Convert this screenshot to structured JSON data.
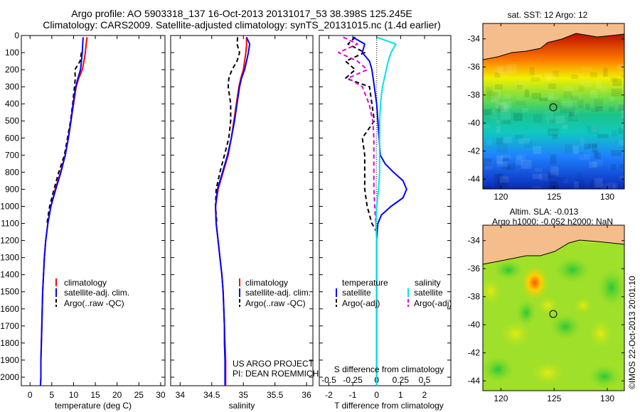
{
  "header": {
    "title_line1": "Argo profile: AO 5903318_137 16-Oct-2013 20131017_53 38.398S 125.245E",
    "title_line2": "Climatology: CARS2009. Satellite-adjusted climatology: synTS_20131015.nc (1.4d earlier)"
  },
  "colors": {
    "climatology": "#ff0000",
    "satellite": "#0000ff",
    "argo": "#000000",
    "salinity_satellite": "#00e5e5",
    "salinity_argo": "#e000e0",
    "land": "#f6bd8c"
  },
  "chart_data": [
    {
      "type": "line",
      "panel": "temperature",
      "xlabel": "temperature (deg C)",
      "xlim": [
        -2,
        31
      ],
      "xticks": [
        "0",
        "5",
        "10",
        "15",
        "20",
        "25",
        "30"
      ],
      "ylim": [
        0,
        2050
      ],
      "yticks": [
        "0",
        "100",
        "200",
        "300",
        "400",
        "500",
        "600",
        "700",
        "800",
        "900",
        "1000",
        "1100",
        "1200",
        "1300",
        "1400",
        "1500",
        "1600",
        "1700",
        "1800",
        "1900",
        "2000"
      ],
      "legend": [
        "climatology",
        "satellite-adj. clim.",
        "Argo(..raw -QC)"
      ],
      "series": [
        {
          "name": "climatology",
          "style": "solid",
          "y": [
            10,
            50,
            100,
            150,
            200,
            250,
            300,
            400,
            500,
            600,
            700,
            800,
            900,
            1000,
            1100,
            1200,
            1300,
            1400,
            1500,
            1600,
            1700,
            1800,
            1900,
            2000,
            2050
          ],
          "values": [
            13.1,
            12.9,
            12.7,
            12.4,
            12.0,
            11.2,
            10.6,
            10.0,
            9.4,
            8.8,
            8.1,
            7.0,
            5.8,
            4.8,
            4.1,
            3.6,
            3.3,
            3.1,
            2.9,
            2.8,
            2.7,
            2.6,
            2.5,
            2.5,
            2.4
          ]
        },
        {
          "name": "satellite-adj. clim.",
          "style": "solid",
          "y": [
            10,
            50,
            100,
            150,
            200,
            250,
            300,
            400,
            500,
            600,
            700,
            800,
            900,
            1000,
            1100,
            1200,
            1300,
            1400,
            1500,
            1600,
            1700,
            1800,
            1900,
            2000,
            2050
          ],
          "values": [
            12.2,
            12.1,
            12.0,
            11.8,
            11.6,
            11.0,
            10.5,
            9.9,
            9.4,
            8.8,
            8.1,
            7.1,
            5.9,
            4.8,
            4.1,
            3.6,
            3.3,
            3.1,
            2.9,
            2.8,
            2.7,
            2.6,
            2.5,
            2.5,
            2.4
          ]
        },
        {
          "name": "Argo(..raw -QC)",
          "style": "dashed",
          "y": [
            100,
            150,
            200,
            250,
            300,
            400,
            500,
            600,
            700,
            800,
            900,
            1000,
            1100
          ],
          "values": [
            11.8,
            11.5,
            10.3,
            10.4,
            10.2,
            9.8,
            9.3,
            8.6,
            7.9,
            6.6,
            5.5,
            4.5,
            3.9
          ]
        }
      ]
    },
    {
      "type": "line",
      "panel": "salinity",
      "xlabel": "salinity",
      "xlim": [
        33.85,
        36.1
      ],
      "xticks": [
        "34",
        "34.5",
        "35",
        "35.5",
        "36"
      ],
      "ylim": [
        0,
        2050
      ],
      "legend": [
        "climatology",
        "satellite-adj. clim.",
        "Argo(..raw -QC)"
      ],
      "annotation_line1": "US ARGO PROJECT",
      "annotation_line2": "PI: DEAN ROEMMICH",
      "series": [
        {
          "name": "climatology",
          "style": "solid",
          "y": [
            10,
            50,
            100,
            150,
            200,
            250,
            300,
            400,
            500,
            600,
            700,
            800,
            900,
            1000,
            1100,
            1200,
            1300,
            1400,
            1500,
            1600,
            1700,
            1800,
            1900,
            2000,
            2050
          ],
          "values": [
            35.05,
            35.05,
            35.04,
            35.02,
            35.0,
            34.96,
            34.93,
            34.89,
            34.85,
            34.81,
            34.76,
            34.68,
            34.6,
            34.56,
            34.57,
            34.6,
            34.63,
            34.66,
            34.68,
            34.69,
            34.7,
            34.71,
            34.72,
            34.72,
            34.72
          ]
        },
        {
          "name": "satellite-adj. clim.",
          "style": "solid",
          "y": [
            10,
            50,
            100,
            150,
            200,
            250,
            300,
            400,
            500,
            600,
            700,
            800,
            900,
            1000,
            1100,
            1200,
            1300,
            1400,
            1500,
            1600,
            1700,
            1800,
            1900,
            2000,
            2050
          ],
          "values": [
            35.05,
            35.1,
            35.08,
            35.05,
            35.02,
            34.97,
            34.94,
            34.9,
            34.86,
            34.81,
            34.75,
            34.67,
            34.59,
            34.56,
            34.57,
            34.6,
            34.63,
            34.66,
            34.68,
            34.69,
            34.7,
            34.7,
            34.71,
            34.71,
            34.71
          ]
        },
        {
          "name": "Argo(..raw -QC)",
          "style": "dashed",
          "y": [
            10,
            50,
            100,
            150,
            200,
            250,
            300,
            400,
            500,
            600,
            700,
            800,
            900,
            1000,
            1100
          ],
          "values": [
            34.91,
            34.9,
            34.94,
            34.9,
            34.82,
            34.77,
            34.76,
            34.8,
            34.8,
            34.77,
            34.7,
            34.63,
            34.57,
            34.56,
            34.58
          ]
        }
      ]
    },
    {
      "type": "line",
      "panel": "difference",
      "xlabel": "T difference from climatology",
      "xlim": [
        -2.4,
        3.1
      ],
      "xticks": [
        "-2",
        "-1",
        "0",
        "1",
        "2"
      ],
      "top_axis_label": "S difference from climatology",
      "top_ticks": [
        "-0.5",
        "-0.25",
        "0",
        "0.25",
        "0.5"
      ],
      "top_tick_values": [
        -0.5,
        -0.25,
        0,
        0.25,
        0.5
      ],
      "top_axis_scale": 4,
      "ylim": [
        0,
        2050
      ],
      "legend_headings": [
        "temperature",
        "salinity"
      ],
      "legend": [
        "satellite",
        "Argo(-adj)",
        "satellite",
        "Argo(-adj)"
      ],
      "series": [
        {
          "name": "satellite",
          "group": "temperature",
          "style": "solid",
          "y": [
            10,
            50,
            100,
            150,
            200,
            300,
            400,
            500,
            600,
            700,
            750,
            800,
            850,
            900,
            950,
            1000,
            1050,
            1100,
            1150,
            1200,
            1300,
            1500,
            1800,
            2050
          ],
          "values": [
            -1.0,
            -0.5,
            -0.6,
            -0.3,
            -0.2,
            -0.1,
            0.0,
            0.05,
            0.1,
            0.15,
            0.35,
            0.7,
            1.1,
            1.25,
            1.1,
            0.6,
            0.2,
            0.05,
            0.02,
            0.0,
            0.0,
            0.0,
            0.0,
            0.0
          ]
        },
        {
          "name": "Argo(-adj)",
          "group": "temperature",
          "style": "dashed",
          "y": [
            10,
            50,
            100,
            150,
            200,
            250,
            300,
            400,
            500,
            600,
            700,
            800,
            900,
            1000,
            1100,
            1150
          ],
          "values": [
            -0.9,
            -1.2,
            -0.5,
            -1.3,
            -0.9,
            -1.3,
            -0.3,
            -0.2,
            -0.1,
            -0.6,
            -0.5,
            -0.5,
            -0.5,
            -0.4,
            -0.2,
            0.0
          ]
        },
        {
          "name": "satellite",
          "group": "salinity",
          "style": "solid",
          "y": [
            10,
            50,
            100,
            150,
            200,
            300,
            400,
            500,
            600,
            700,
            800,
            900,
            1000,
            1100,
            1200,
            1300,
            1500,
            1800,
            2050
          ],
          "values": [
            0.0,
            0.2,
            0.15,
            0.12,
            0.1,
            0.06,
            0.04,
            0.03,
            0.03,
            0.03,
            0.03,
            0.02,
            0.0,
            -0.01,
            0.0,
            0.0,
            0.0,
            0.0,
            0.0
          ]
        },
        {
          "name": "Argo(-adj)",
          "group": "salinity",
          "style": "dashed",
          "y": [
            10,
            50,
            100,
            150,
            200,
            250,
            300,
            400,
            500,
            600,
            700,
            800,
            900,
            1000,
            1100
          ],
          "values": [
            -0.35,
            -0.2,
            -0.4,
            -0.2,
            -0.1,
            -0.3,
            -0.15,
            -0.08,
            -0.04,
            -0.03,
            -0.03,
            -0.03,
            -0.03,
            -0.02,
            -0.01
          ]
        }
      ]
    }
  ],
  "maps": {
    "sst": {
      "title": "sat. SST: 12 Argo: 12",
      "yticks": [
        "-34",
        "-36",
        "-38",
        "-40",
        "-42",
        "-44"
      ],
      "xticks": [
        "120",
        "125",
        "130"
      ]
    },
    "sla": {
      "title_line1": "Altim. SLA: -0.013",
      "title_line2": "Argo h1000: -0.052 h2000: NaN",
      "yticks": [
        "-34",
        "-36",
        "-38",
        "-40",
        "-42",
        "-44"
      ],
      "xticks": [
        "120",
        "125",
        "130"
      ]
    },
    "side_label": "©IMOS 22-Oct-2013 20:01:10"
  }
}
